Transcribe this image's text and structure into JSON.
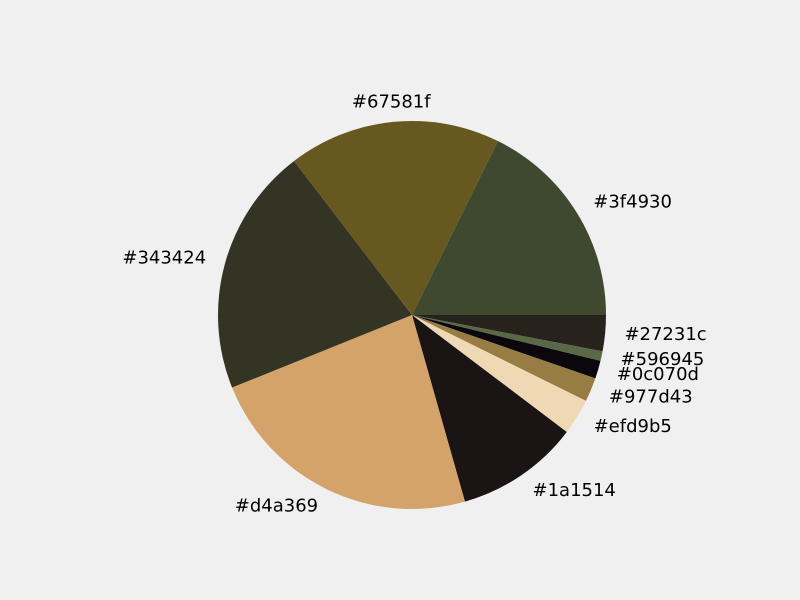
{
  "chart_data": {
    "type": "pie",
    "title": "",
    "start_angle_deg": 0,
    "direction": "clockwise",
    "labels": [
      "#27231c",
      "#596945",
      "#0c070d",
      "#977d43",
      "#efd9b5",
      "#1a1514",
      "#d4a369",
      "#343424",
      "#67581f",
      "#3f4930"
    ],
    "colors": [
      "#27231c",
      "#596945",
      "#0c070d",
      "#977d43",
      "#efd9b5",
      "#1a1514",
      "#d4a369",
      "#343424",
      "#67581f",
      "#3f4930"
    ],
    "values": [
      3.0,
      0.8,
      1.5,
      2.0,
      3.0,
      10.3,
      23.3,
      20.7,
      17.7,
      17.7
    ]
  }
}
